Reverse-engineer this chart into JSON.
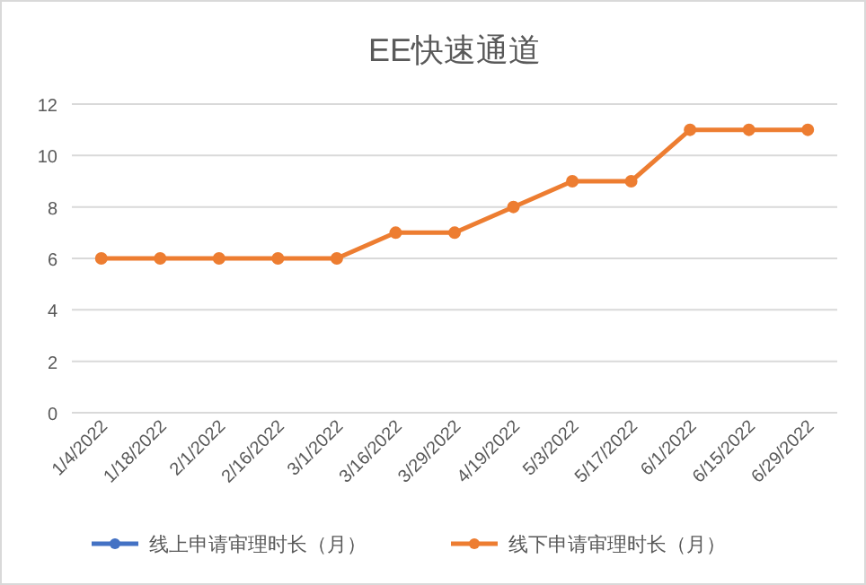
{
  "chart_data": {
    "type": "line",
    "title": "EE快速通道",
    "categories": [
      "1/4/2022",
      "1/18/2022",
      "2/1/2022",
      "2/16/2022",
      "3/1/2022",
      "3/16/2022",
      "3/29/2022",
      "4/19/2022",
      "5/3/2022",
      "5/17/2022",
      "6/1/2022",
      "6/15/2022",
      "6/29/2022"
    ],
    "series": [
      {
        "name": "线上申请审理时长（月）",
        "color": "#4472c4",
        "values": [
          null,
          null,
          null,
          null,
          null,
          null,
          null,
          null,
          null,
          null,
          null,
          null,
          null
        ]
      },
      {
        "name": "线下申请审理时长（月）",
        "color": "#ed7d31",
        "values": [
          6,
          6,
          6,
          6,
          6,
          7,
          7,
          8,
          9,
          9,
          11,
          11,
          11
        ]
      }
    ],
    "ylim": [
      0,
      12
    ],
    "yticks": [
      0,
      2,
      4,
      6,
      8,
      10,
      12
    ],
    "grid": "y",
    "legend": "bottom",
    "marker": "circle",
    "line_style": "solid"
  }
}
